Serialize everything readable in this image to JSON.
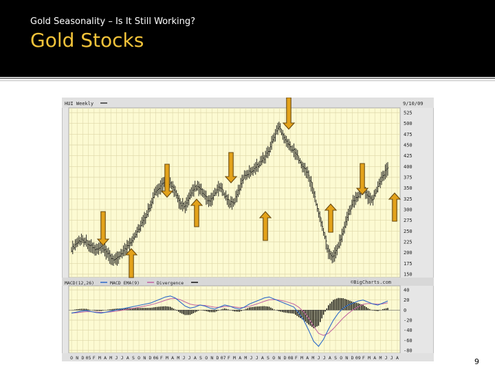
{
  "slide": {
    "subtitle": "Gold Seasonality – Is It Still Working?",
    "title": "Gold Stocks",
    "page_number": "9"
  },
  "chart": {
    "top_label": "HUI Weekly",
    "date_label": "9/10/09",
    "credit": "©BigCharts.com",
    "macd_legend": [
      "MACD(12,26)",
      "MACD EMA(9)",
      "Divergence"
    ],
    "price_ticks": [
      "525",
      "500",
      "475",
      "450",
      "425",
      "400",
      "375",
      "350",
      "325",
      "300",
      "275",
      "250",
      "225",
      "200",
      "175",
      "150"
    ],
    "macd_ticks": [
      "40",
      "20",
      "0",
      "-20",
      "-40",
      "-60",
      "-80"
    ],
    "month_labels": [
      "O",
      "N",
      "D",
      "05",
      "F",
      "M",
      "A",
      "M",
      "J",
      "J",
      "A",
      "S",
      "O",
      "N",
      "D",
      "06",
      "F",
      "M",
      "A",
      "M",
      "J",
      "J",
      "A",
      "S",
      "O",
      "N",
      "D",
      "07",
      "F",
      "M",
      "A",
      "M",
      "J",
      "J",
      "A",
      "S",
      "O",
      "N",
      "D",
      "08",
      "F",
      "M",
      "A",
      "M",
      "J",
      "J",
      "A",
      "S",
      "O",
      "N",
      "D",
      "09",
      "F",
      "M",
      "A",
      "M",
      "J",
      "J",
      "A"
    ]
  },
  "chart_data": {
    "type": "line",
    "title": "HUI Weekly",
    "price_axis": [
      150,
      525
    ],
    "macd_axis": [
      -80,
      40
    ],
    "price": [
      207,
      222,
      230,
      226,
      214,
      206,
      212,
      200,
      188,
      182,
      198,
      210,
      226,
      244,
      262,
      284,
      314,
      340,
      352,
      366,
      360,
      338,
      314,
      308,
      330,
      352,
      348,
      330,
      316,
      338,
      352,
      334,
      316,
      318,
      350,
      380,
      386,
      396,
      406,
      420,
      438,
      470,
      492,
      470,
      448,
      436,
      418,
      396,
      380,
      340,
      290,
      250,
      200,
      190,
      218,
      250,
      290,
      318,
      332,
      348,
      330,
      324,
      354,
      380,
      394
    ],
    "macd": [
      -6,
      -4,
      -2,
      -1,
      -3,
      -5,
      -6,
      -4,
      -2,
      0,
      2,
      4,
      6,
      8,
      10,
      12,
      14,
      18,
      22,
      26,
      28,
      24,
      16,
      8,
      4,
      6,
      10,
      8,
      4,
      2,
      6,
      10,
      8,
      4,
      2,
      6,
      12,
      16,
      20,
      24,
      26,
      22,
      18,
      14,
      10,
      6,
      -6,
      -20,
      -40,
      -62,
      -72,
      -58,
      -38,
      -20,
      -6,
      4,
      10,
      14,
      18,
      20,
      16,
      12,
      10,
      14,
      18
    ]
  }
}
